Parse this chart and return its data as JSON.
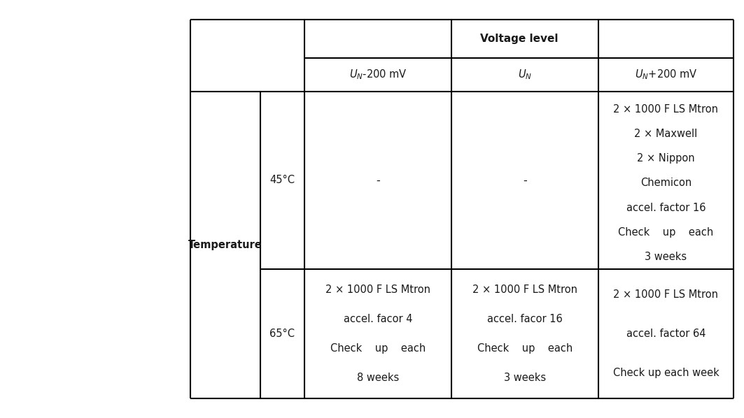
{
  "background_color": "#ffffff",
  "header_row1": "Voltage level",
  "col_headers": [
    "U_N-200 mV",
    "U_N",
    "U_N+200 mV"
  ],
  "row_header_main": "Temperature",
  "row_header_sub": [
    "45°C",
    "65°C"
  ],
  "cells": {
    "45_low": "-",
    "45_mid": "-",
    "45_high_lines": [
      "2 × 1000 F LS Mtron",
      "2 × Maxwell",
      "2 × Nippon",
      "Chemicon",
      "accel. factor 16",
      "Check    up    each",
      "3 weeks"
    ],
    "65_low_lines": [
      "2 × 1000 F LS Mtron",
      "accel. facor 4",
      "Check    up    each",
      "8 weeks"
    ],
    "65_mid_lines": [
      "2 × 1000 F LS Mtron",
      "accel. facor 16",
      "Check    up    each",
      "3 weeks"
    ],
    "65_high_lines": [
      "2 × 1000 F LS Mtron",
      "accel. factor 64",
      "Check up each week"
    ]
  },
  "font_size": 10.5,
  "header_font_size": 11,
  "line_color": "#000000",
  "text_color": "#1a1a1a",
  "col_header_subscript": true
}
